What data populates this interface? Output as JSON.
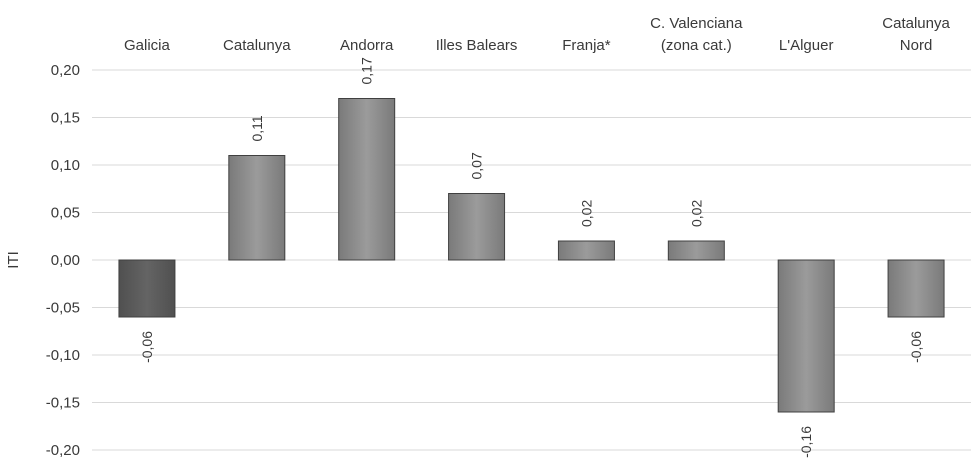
{
  "chart_data": {
    "type": "bar",
    "ylabel": "ITI",
    "ylim": [
      -0.2,
      0.2
    ],
    "yticks": [
      0.2,
      0.15,
      0.1,
      0.05,
      0.0,
      -0.05,
      -0.1,
      -0.15,
      -0.2
    ],
    "ytick_labels": [
      "0,20",
      "0,15",
      "0,10",
      "0,05",
      "0,00",
      "-0,05",
      "-0,10",
      "-0,15",
      "-0,20"
    ],
    "grid": true,
    "legend": "none",
    "categories": [
      {
        "lines": [
          "Galicia"
        ]
      },
      {
        "lines": [
          "Catalunya"
        ]
      },
      {
        "lines": [
          "Andorra"
        ]
      },
      {
        "lines": [
          "Illes Balears"
        ]
      },
      {
        "lines": [
          "Franja*"
        ]
      },
      {
        "lines": [
          "C. Valenciana",
          "(zona cat.)"
        ]
      },
      {
        "lines": [
          "L'Alguer"
        ]
      },
      {
        "lines": [
          "Catalunya",
          "Nord"
        ]
      }
    ],
    "values": [
      -0.06,
      0.11,
      0.17,
      0.07,
      0.02,
      0.02,
      -0.16,
      -0.06
    ],
    "value_labels": [
      "-0,06",
      "0,11",
      "0,17",
      "0,07",
      "0,02",
      "0,02",
      "-0,16",
      "-0,06"
    ],
    "bar_colors": [
      "#5a5a5a",
      "#8c8c8c",
      "#8c8c8c",
      "#8c8c8c",
      "#8c8c8c",
      "#8c8c8c",
      "#8c8c8c",
      "#8c8c8c"
    ]
  }
}
